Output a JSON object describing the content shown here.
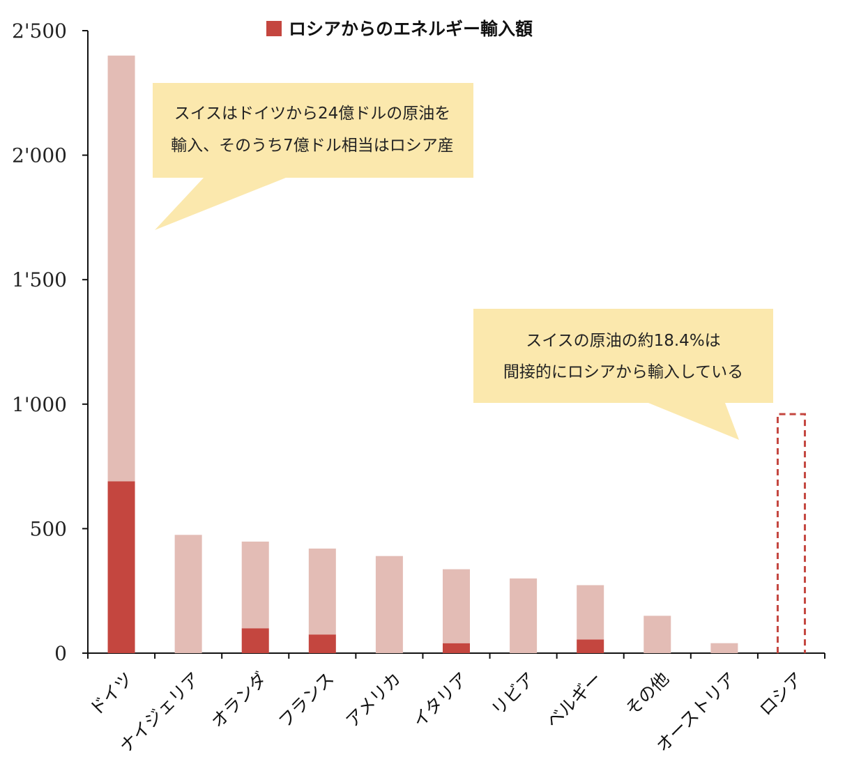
{
  "chart_data": {
    "type": "bar",
    "stacked": true,
    "categories": [
      "ドイツ",
      "ナイジェリア",
      "オランダ",
      "フランス",
      "アメリカ",
      "イタリア",
      "リビア",
      "ベルギー",
      "その他",
      "オーストリア",
      "ロシア"
    ],
    "series": [
      {
        "name": "ロシアからのエネルギー輸入額",
        "color": "#c4463f",
        "values": [
          690,
          0,
          100,
          75,
          0,
          40,
          0,
          55,
          0,
          0,
          0
        ]
      },
      {
        "color": "#e3bcb5",
        "values": [
          1710,
          475,
          348,
          345,
          390,
          297,
          300,
          218,
          150,
          40,
          0
        ]
      }
    ],
    "highlight": {
      "category": "ロシア",
      "value": 960,
      "style": "dashed-outline",
      "color": "#c4463f"
    },
    "ylim": [
      0,
      2500
    ],
    "yticks": [
      0,
      500,
      1000,
      1500,
      2000,
      2500
    ],
    "ytick_labels": [
      "0",
      "500",
      "1'000",
      "1'500",
      "2'000",
      "2'500"
    ],
    "legend_position": "top",
    "annotations": [
      {
        "lines": [
          "スイスはドイツから24億ドルの原油を",
          "輸入、そのうち7億ドル相当はロシア産"
        ],
        "fill": "#fbe8ad"
      },
      {
        "lines": [
          "スイスの原油の約18.4%は",
          "間接的にロシアから輸入している"
        ],
        "fill": "#fbe8ad"
      }
    ]
  }
}
